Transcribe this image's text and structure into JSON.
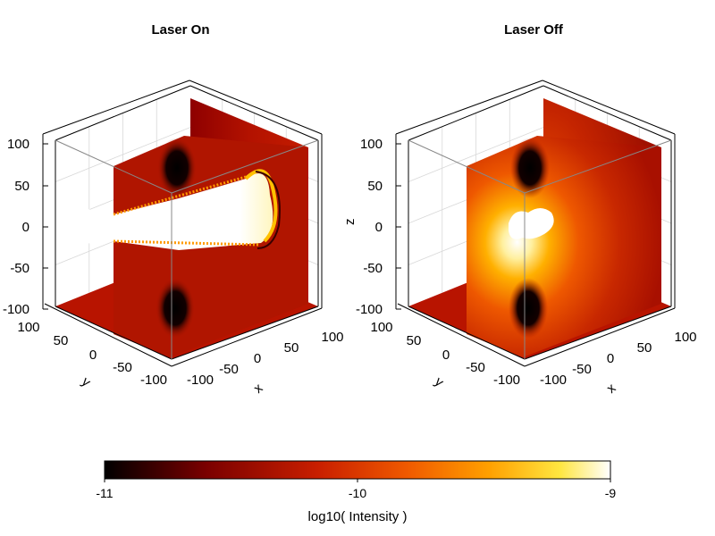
{
  "chart_data": [
    {
      "type": "heatmap",
      "title": "Laser On",
      "xlabel": "x",
      "ylabel": "y",
      "zlabel": "",
      "xlim": [
        -100,
        100
      ],
      "ylim": [
        -100,
        100
      ],
      "zlim": [
        -100,
        100
      ],
      "x_ticks": [
        "-100",
        "-50",
        "0",
        "50",
        "100"
      ],
      "y_ticks": [
        "100",
        "50",
        "0",
        "-50",
        "-100"
      ],
      "z_ticks": [
        "100",
        "50",
        "0",
        "-50",
        "-100"
      ],
      "slices": [
        "x = 0",
        "y = 0",
        "z = -100"
      ],
      "beam": true
    },
    {
      "type": "heatmap",
      "title": "Laser Off",
      "xlabel": "x",
      "ylabel": "y",
      "zlabel": "z",
      "xlim": [
        -100,
        100
      ],
      "ylim": [
        -100,
        100
      ],
      "zlim": [
        -100,
        100
      ],
      "x_ticks": [
        "-100",
        "-50",
        "0",
        "50",
        "100"
      ],
      "y_ticks": [
        "100",
        "50",
        "0",
        "-50",
        "-100"
      ],
      "z_ticks": [
        "100",
        "50",
        "0",
        "-50",
        "-100"
      ],
      "slices": [
        "x = 0",
        "y = 0",
        "z = -100"
      ],
      "beam": false
    }
  ],
  "colorbar": {
    "label": "log10( Intensity )",
    "min": -11,
    "max": -9,
    "ticks": [
      "-11",
      "-10",
      "-9"
    ],
    "colormap": [
      "#000000",
      "#7a0000",
      "#c81e00",
      "#f05a00",
      "#ffa000",
      "#ffe640",
      "#ffffff"
    ]
  },
  "colors": {
    "dark_lobe": "#000000",
    "base_red": "#b81400",
    "hot_orange": "#ff7a00",
    "hot_yellow": "#ffd21a",
    "beam_white": "#ffffff",
    "frame": "#000000",
    "grid": "#d8d8d8"
  }
}
